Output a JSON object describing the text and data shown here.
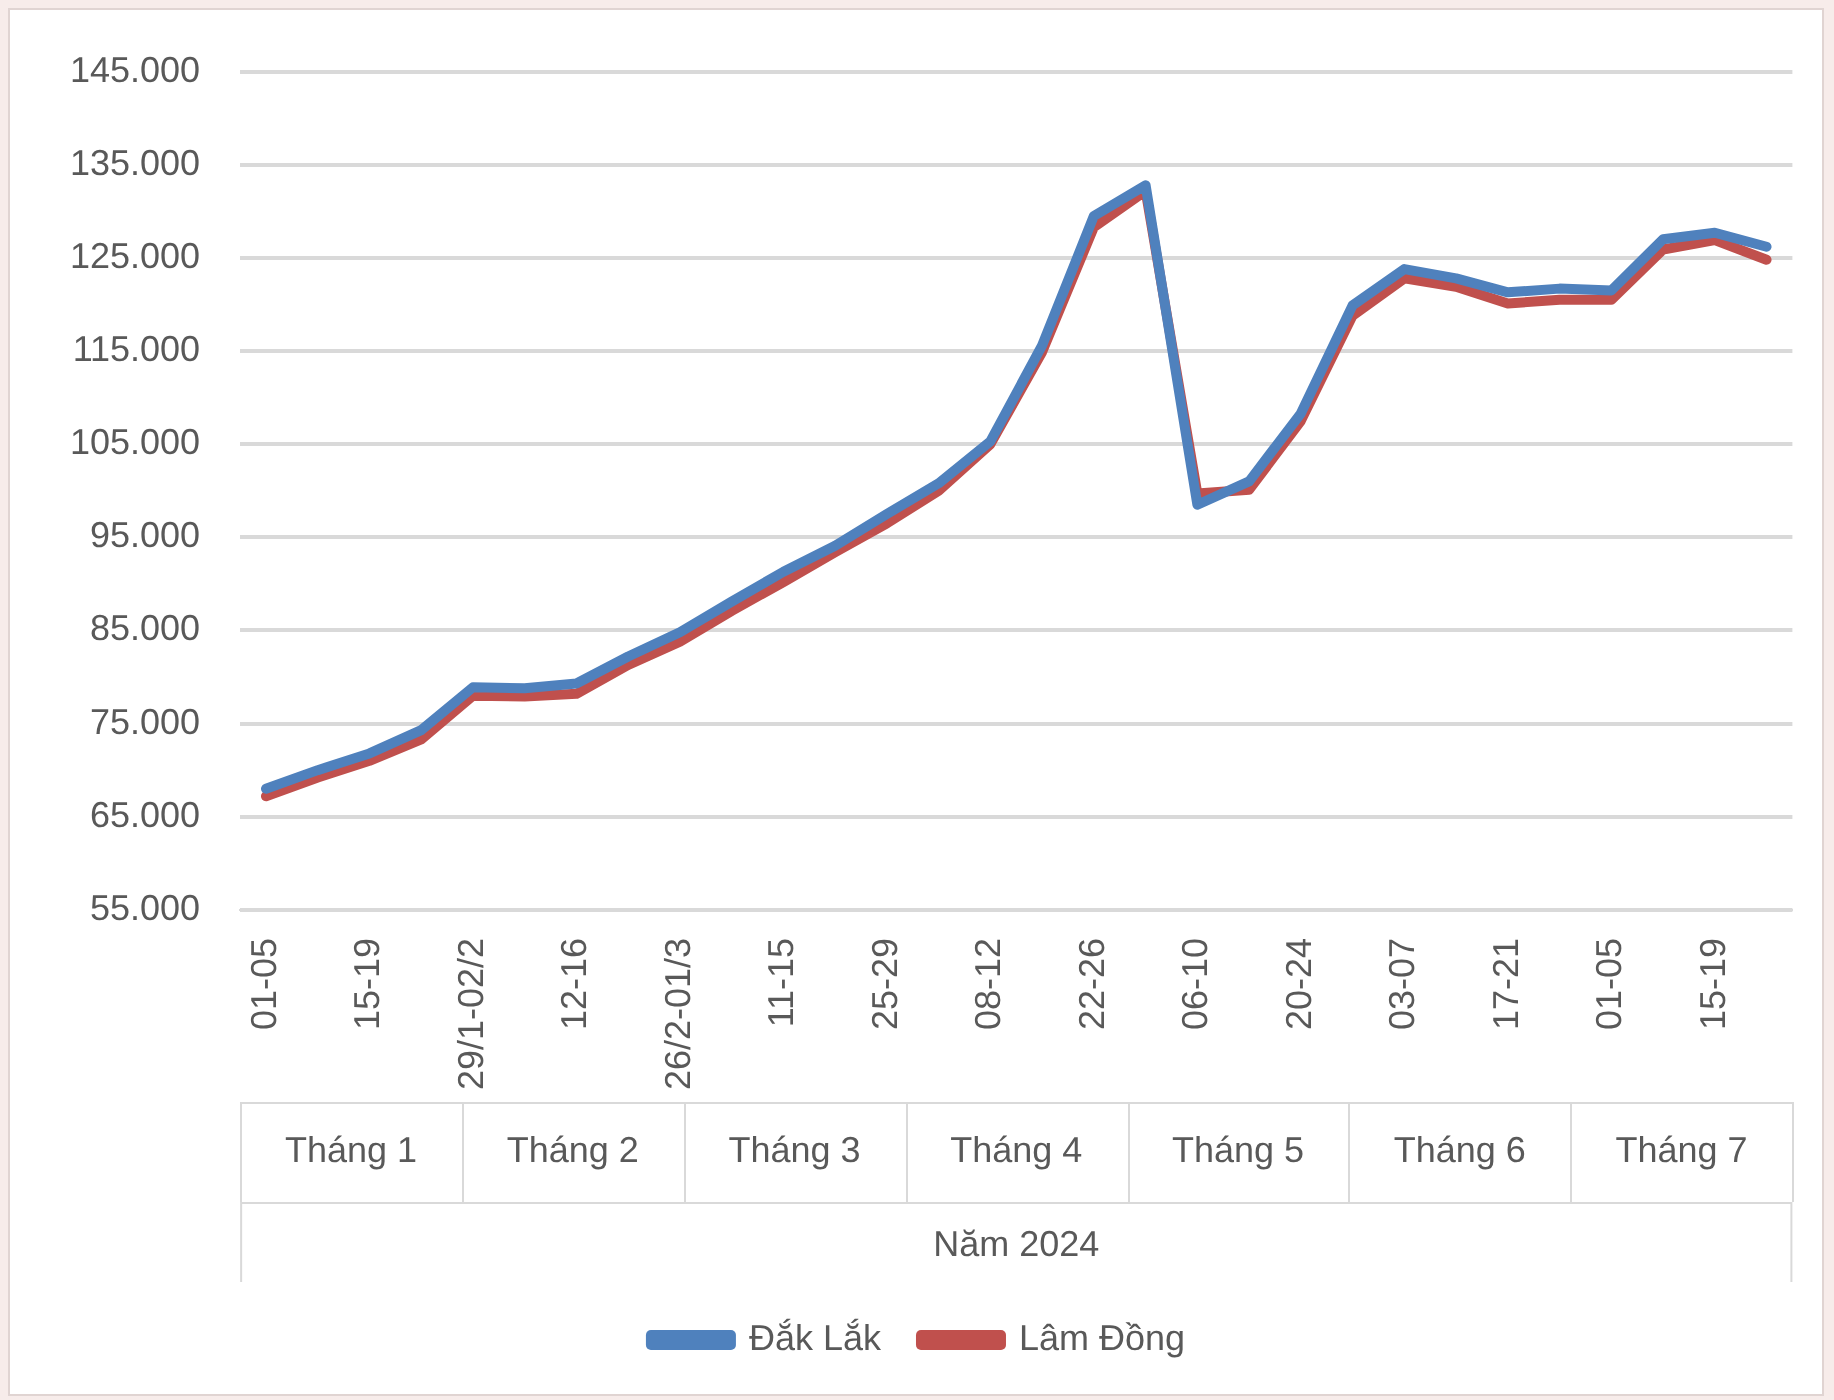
{
  "chart_data": {
    "type": "line",
    "categories": [
      "01-05",
      null,
      "15-19",
      null,
      "29/1-02/2",
      null,
      "12-16",
      null,
      "26/2-01/3",
      null,
      "11-15",
      null,
      "25-29",
      null,
      "08-12",
      null,
      "22-26",
      null,
      "06-10",
      null,
      "20-24",
      null,
      "03-07",
      null,
      "17-21",
      null,
      "01-05",
      null,
      "15-19",
      null
    ],
    "series": [
      {
        "name": "Đắk Lắk",
        "color": "#4f81bd",
        "values": [
          68000,
          70000,
          71800,
          74300,
          78900,
          78800,
          79300,
          82200,
          84800,
          88100,
          91300,
          94100,
          97500,
          100800,
          105300,
          115600,
          129500,
          132800,
          98500,
          101000,
          108300,
          119900,
          123800,
          122800,
          121300,
          121700,
          121500,
          127000,
          127700,
          126200
        ]
      },
      {
        "name": "Lâm Đồng",
        "color": "#c0504d",
        "values": [
          67200,
          69200,
          71000,
          73300,
          78000,
          77900,
          78200,
          81300,
          83800,
          87100,
          90200,
          93400,
          96500,
          100000,
          105000,
          114900,
          128300,
          132200,
          99700,
          100100,
          107500,
          118800,
          122800,
          121900,
          120100,
          120500,
          120500,
          125900,
          126900,
          124800
        ]
      }
    ],
    "ylim": [
      55000,
      145000
    ],
    "yticks": [
      {
        "value": 55000,
        "label": "55.000"
      },
      {
        "value": 65000,
        "label": "65.000"
      },
      {
        "value": 75000,
        "label": "75.000"
      },
      {
        "value": 85000,
        "label": "85.000"
      },
      {
        "value": 95000,
        "label": "95.000"
      },
      {
        "value": 105000,
        "label": "105.000"
      },
      {
        "value": 115000,
        "label": "115.000"
      },
      {
        "value": 125000,
        "label": "125.000"
      },
      {
        "value": 135000,
        "label": "135.000"
      },
      {
        "value": 145000,
        "label": "145.000"
      }
    ],
    "xlabel": "Năm 2024",
    "annotations": [
      "Tháng 1",
      "Tháng 2",
      "Tháng 3",
      "Tháng 4",
      "Tháng 5",
      "Tháng 6",
      "Tháng 7"
    ],
    "grid": "y",
    "legend": "bottom",
    "marker": "none",
    "line_style": "solid"
  }
}
